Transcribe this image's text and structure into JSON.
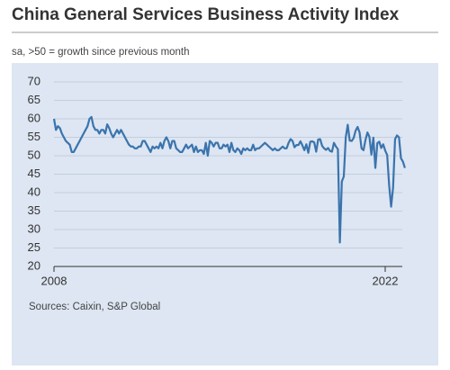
{
  "chart_data": {
    "type": "line",
    "title": "China General Services Business Activity Index",
    "subtitle": "sa, >50 = growth since previous month",
    "source": "Sources: Caixin, S&P Global",
    "color": "#3b74ad",
    "ylim": [
      20,
      70
    ],
    "yticks": [
      20,
      25,
      30,
      35,
      40,
      45,
      50,
      55,
      60,
      65,
      70
    ],
    "grid": true,
    "categories": [
      "2008",
      null,
      null,
      null,
      null,
      null,
      null,
      null,
      null,
      null,
      null,
      null,
      null,
      null,
      null,
      null,
      null,
      null,
      null,
      null,
      null,
      null,
      null,
      null,
      null,
      null,
      null,
      null,
      null,
      null,
      null,
      null,
      null,
      null,
      null,
      null,
      null,
      null,
      null,
      null,
      null,
      null,
      null,
      null,
      null,
      null,
      null,
      null,
      null,
      null,
      null,
      null,
      null,
      null,
      null,
      null,
      null,
      null,
      null,
      null,
      null,
      null,
      null,
      null,
      null,
      null,
      null,
      null,
      null,
      null,
      null,
      null,
      null,
      null,
      null,
      null,
      null,
      null,
      null,
      null,
      null,
      null,
      null,
      null,
      null,
      null,
      null,
      null,
      null,
      null,
      null,
      null,
      null,
      null,
      null,
      null,
      null,
      null,
      null,
      null,
      null,
      null,
      null,
      null,
      null,
      null,
      null,
      null,
      null,
      null,
      null,
      null,
      null,
      null,
      null,
      null,
      null,
      null,
      null,
      null,
      null,
      null,
      null,
      null,
      null,
      null,
      null,
      null,
      null,
      null,
      null,
      null,
      null,
      null,
      null,
      null,
      null,
      null,
      null,
      null,
      null,
      null,
      null,
      null,
      null,
      null,
      null,
      null,
      null,
      null,
      null,
      null,
      null,
      null,
      null,
      null,
      null,
      null,
      null,
      null,
      null,
      null,
      null,
      null,
      null,
      null,
      null,
      null,
      "2022",
      null,
      null,
      null,
      null,
      null,
      null,
      null,
      null,
      null,
      null
    ],
    "values": [
      60,
      57,
      58,
      57.5,
      56,
      55,
      54,
      53.5,
      53,
      51,
      51,
      52,
      53,
      54,
      55,
      56,
      57,
      58,
      60,
      60.5,
      58,
      57,
      57,
      56,
      57,
      57,
      56,
      58.5,
      57.5,
      56,
      55,
      56,
      57,
      56,
      57,
      56,
      55,
      54,
      53,
      52.5,
      52.5,
      52,
      52,
      52.5,
      52.5,
      54,
      54,
      53,
      52,
      51,
      52.5,
      52,
      52.5,
      52,
      53.5,
      52,
      54,
      55,
      54,
      52,
      54,
      54,
      52,
      51.5,
      51,
      51,
      52,
      53,
      52,
      52.5,
      53,
      51,
      52.5,
      51,
      51.5,
      51.5,
      50.5,
      53.5,
      50,
      54,
      53.5,
      52.5,
      53.5,
      53.5,
      52,
      52,
      53,
      52.5,
      53,
      51,
      53.5,
      51.5,
      51,
      52,
      51.5,
      50.5,
      52,
      51.5,
      52,
      51.5,
      51.5,
      53,
      51.5,
      52,
      52,
      52.5,
      53,
      53.5,
      53,
      52.5,
      52,
      51.5,
      52,
      51.5,
      51.5,
      52,
      52.5,
      52,
      52,
      53.5,
      54.5,
      54,
      52.3,
      52.9,
      52.9,
      53.9,
      52.8,
      51.5,
      53.1,
      50.8,
      53.8,
      53.9,
      53.6,
      51.1,
      54.4,
      54.5,
      52.7,
      52,
      51.6,
      52.1,
      51.3,
      51.1,
      53.5,
      52.5,
      51.8,
      26.5,
      43,
      44.4,
      55,
      58.4,
      54.1,
      54,
      54.8,
      56.8,
      57.8,
      56.3,
      52,
      51.5,
      54.3,
      56.3,
      55.1,
      50.3,
      54.9,
      46.7,
      53.4,
      53.8,
      52.1,
      53.1,
      51.4,
      50.2,
      42,
      36.2,
      41.4,
      54.5,
      55.5,
      55,
      49.3,
      48.4,
      46.7
    ]
  }
}
